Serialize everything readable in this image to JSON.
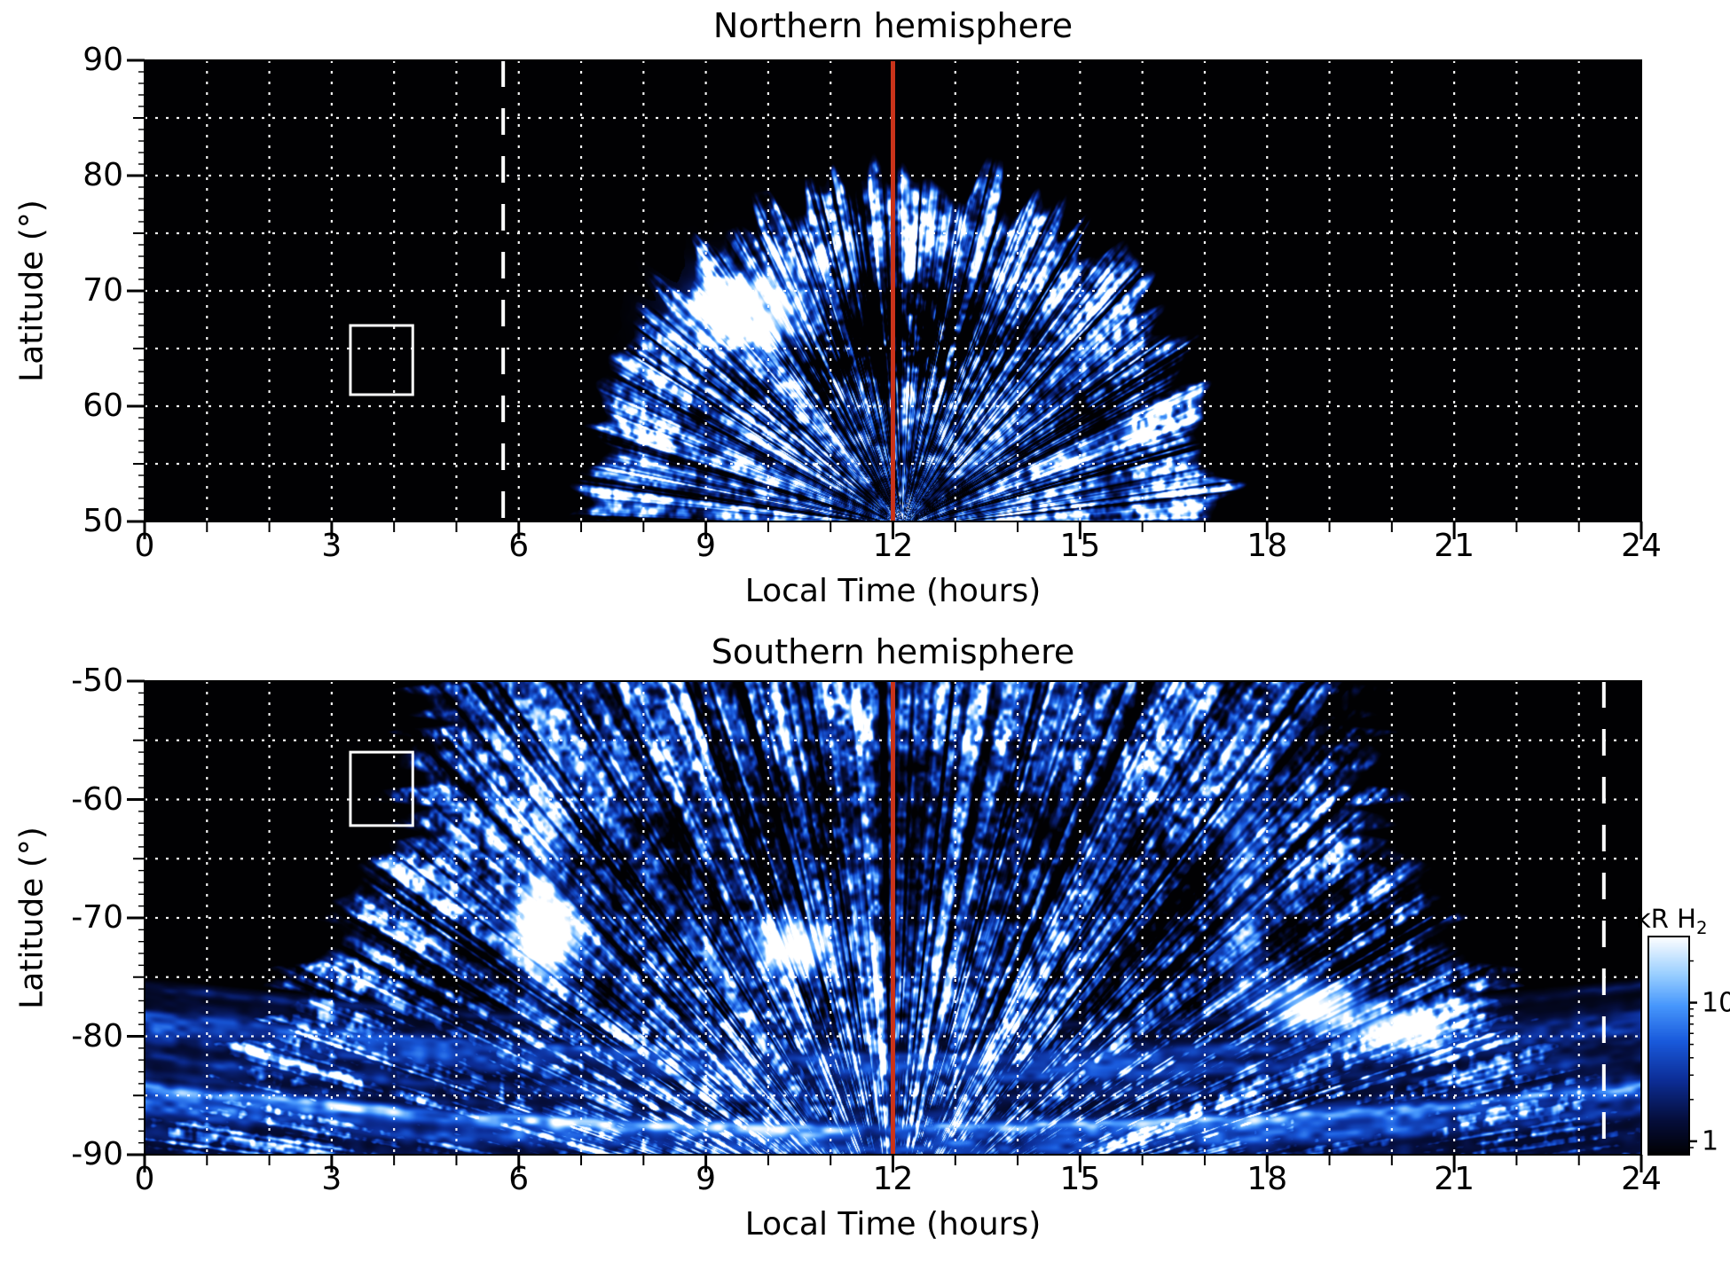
{
  "figure": {
    "background_color": "#ffffff",
    "text_color": "#000000",
    "description": "Two-panel heatmap of H2 auroral emission brightness versus local time and latitude for the northern and southern hemispheres"
  },
  "colors": {
    "plot_background": "#000000",
    "grid_lines": "#ffffff",
    "noon_line": "#c9331a",
    "dashed_line": "#ffffff",
    "highlight_box": "#ffffff",
    "axis": "#000000"
  },
  "colorbar": {
    "label_prefix": "kR H",
    "label_sub": "2",
    "scale": "log",
    "tick_labels": [
      "10",
      "1"
    ],
    "tick_values": [
      10,
      1
    ],
    "range_kR": [
      0.8,
      30
    ]
  },
  "chart_data": [
    {
      "type": "heatmap",
      "title": "Northern hemisphere",
      "xlabel": "Local Time (hours)",
      "ylabel": "Latitude (°)",
      "xlim": [
        0,
        24
      ],
      "ylim": [
        50,
        90
      ],
      "xticks": [
        0,
        3,
        6,
        9,
        12,
        15,
        18,
        21,
        24
      ],
      "yticks": [
        90,
        80,
        70,
        60,
        50
      ],
      "grid": {
        "x_step_hours": 1,
        "y_step_deg": 5,
        "style": "dotted white"
      },
      "quantity": "H2 auroral emission brightness (kR), log color scale",
      "noon_line_hours": 12,
      "dashed_line_hours": 5.75,
      "highlight_box": {
        "hours": [
          3.3,
          4.3
        ],
        "lat": [
          61.0,
          67.0
        ]
      },
      "emission": {
        "description": "Dayside emission dome centred on local noon: extends from about 7 h to 17 h local time at 50° latitude and reaches about 80° at noon; radial streaked blue texture with speckle; bright white patch near 9.5-10.5 h at 64-72°; darker lane around 62-70° near noon; black elsewhere.",
        "dome_center_hours": 12.15,
        "dome_base_lat": 49.5,
        "dome_top_lat": 80.5,
        "dome_half_width_hours": 5.2,
        "bright_patch": {
          "hours": 9.7,
          "lat": 68.2,
          "sigma_hours": 0.95,
          "sigma_lat": 3.1,
          "amp": 1.45
        },
        "dark_lane": {
          "hours": 12.15,
          "lat_center": 66,
          "radial_sigma": 0.115,
          "angular_sigma": 0.55,
          "depth": 0.85
        }
      }
    },
    {
      "type": "heatmap",
      "title": "Southern hemisphere",
      "xlabel": "Local Time (hours)",
      "ylabel": "Latitude (°)",
      "xlim": [
        0,
        24
      ],
      "ylim": [
        -90,
        -50
      ],
      "xticks": [
        0,
        3,
        6,
        9,
        12,
        15,
        18,
        21,
        24
      ],
      "yticks": [
        -50,
        -60,
        -70,
        -80,
        -90
      ],
      "grid": {
        "x_step_hours": 1,
        "y_step_deg": 5,
        "style": "dotted white"
      },
      "quantity": "H2 auroral emission brightness (kR), log color scale",
      "noon_line_hours": 12,
      "dashed_line_hours": 23.4,
      "highlight_box": {
        "hours": [
          3.3,
          4.3
        ],
        "lat": [
          -62.2,
          -56.0
        ]
      },
      "emission": {
        "description": "Broad speckled emission fan from about 5 h to 19 h local time reaching -50°; bright columns near 6.3 h and 17.7 h; white patches near (6.5 h, -71°), (10.5 h, -72.5°), (18.7 h, -77.5°), (20.2 h, -79.5°); banded blue arcs at all local times poleward of about -80°, darkening toward -90°.",
        "fan_center_hours": 12,
        "fan_half_width_at_minus50_hours": 7.5,
        "bright_columns_hours": [
          6.35,
          17.65
        ],
        "bright_patches": [
          {
            "hours": 6.45,
            "lat": -71.0,
            "sigma_hours": 0.55,
            "sigma_lat": 2.8,
            "amp": 1.4
          },
          {
            "hours": 10.45,
            "lat": -72.5,
            "sigma_hours": 0.6,
            "sigma_lat": 2.3,
            "amp": 1.2
          },
          {
            "hours": 18.75,
            "lat": -77.5,
            "sigma_hours": 0.85,
            "sigma_lat": 2.4,
            "amp": 1.15
          },
          {
            "hours": 20.2,
            "lat": -79.5,
            "sigma_hours": 0.7,
            "sigma_lat": 1.8,
            "amp": 0.95
          }
        ],
        "polar_band": {
          "lat_range": [
            -90,
            -80
          ],
          "all_local_times": true
        }
      }
    }
  ]
}
